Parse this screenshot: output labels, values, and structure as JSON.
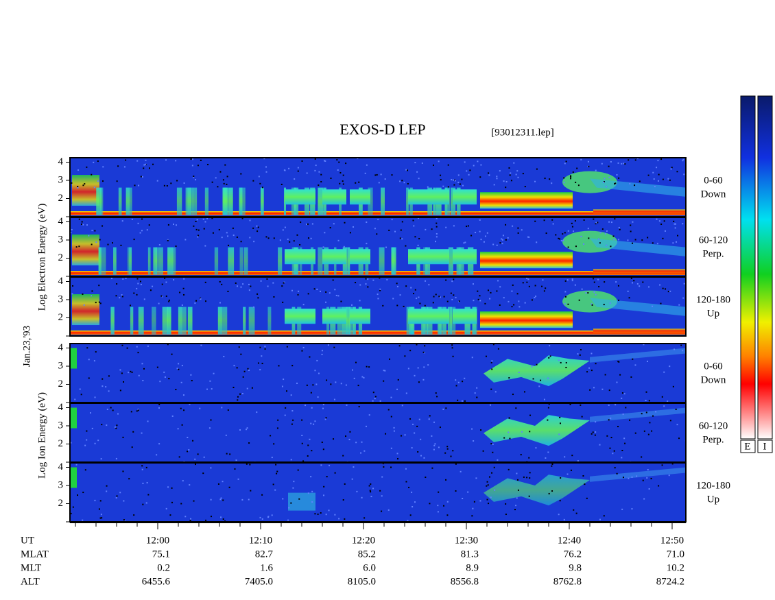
{
  "header": {
    "title": "EXOS-D LEP",
    "file": "[93012311.lep]"
  },
  "date": "Jan.23,'93",
  "electron_axis": "Log  Electron  Energy (eV)",
  "ion_axis": "Log  Ion  Energy (eV)",
  "panels": [
    {
      "species": "electron",
      "labels": [
        "0-60",
        "Down"
      ],
      "yticks": [
        2,
        3,
        4
      ]
    },
    {
      "species": "electron",
      "labels": [
        "60-120",
        "Perp."
      ],
      "yticks": [
        2,
        3,
        4
      ]
    },
    {
      "species": "electron",
      "labels": [
        "120-180",
        "Up"
      ],
      "yticks": [
        2,
        3,
        4
      ]
    },
    {
      "species": "ion",
      "labels": [
        "0-60",
        "Down"
      ],
      "yticks": [
        2,
        3,
        4
      ]
    },
    {
      "species": "ion",
      "labels": [
        "60-120",
        "Perp."
      ],
      "yticks": [
        2,
        3,
        4
      ]
    },
    {
      "species": "ion",
      "labels": [
        "120-180",
        "Up"
      ],
      "yticks": [
        2,
        3,
        4
      ]
    }
  ],
  "rows": [
    {
      "name": "UT",
      "values": [
        "12:00",
        "12:10",
        "12:20",
        "12:30",
        "12:40",
        "12:50"
      ]
    },
    {
      "name": "MLAT",
      "values": [
        "75.1",
        "82.7",
        "85.2",
        "81.3",
        "76.2",
        "71.0"
      ]
    },
    {
      "name": "MLT",
      "values": [
        "0.2",
        "1.6",
        "6.0",
        "8.9",
        "9.8",
        "10.2"
      ]
    },
    {
      "name": "ALT",
      "values": [
        "6455.6",
        "7405.0",
        "8105.0",
        "8556.8",
        "8762.8",
        "8724.2"
      ]
    }
  ],
  "colorbars": [
    "E",
    "I"
  ]
}
